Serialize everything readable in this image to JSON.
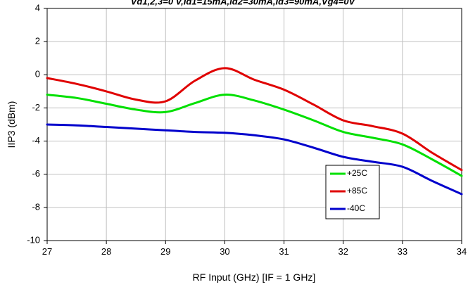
{
  "chart_data": {
    "type": "line",
    "title": "Vd1,2,3=0 V,Id1=15mA,Id2=30mA,Id3=90mA,Vg4=0V",
    "xlabel": "RF Input (GHz) [IF = 1 GHz]",
    "ylabel": "IIP3 (dBm)",
    "xlim": [
      27,
      34
    ],
    "ylim": [
      -10,
      4
    ],
    "x_ticks": [
      27,
      28,
      29,
      30,
      31,
      32,
      33,
      34
    ],
    "y_ticks": [
      -10,
      -8,
      -6,
      -4,
      -2,
      0,
      2,
      4
    ],
    "x_tick_labels": [
      "27",
      "28",
      "29",
      "30",
      "31",
      "32",
      "33",
      "34"
    ],
    "y_tick_labels": [
      "-10",
      "-8",
      "-6",
      "-4",
      "-2",
      "0",
      "2",
      "4"
    ],
    "grid": true,
    "legend_position": "lower-right",
    "x": [
      27,
      27.5,
      28,
      28.5,
      29,
      29.5,
      30,
      30.5,
      31,
      31.5,
      32,
      32.5,
      33,
      33.5,
      34
    ],
    "series": [
      {
        "name": "+25C",
        "color": "#00e000",
        "values": [
          -1.2,
          -1.4,
          -1.75,
          -2.1,
          -2.25,
          -1.7,
          -1.2,
          -1.55,
          -2.1,
          -2.75,
          -3.45,
          -3.8,
          -4.2,
          -5.1,
          -6.1
        ]
      },
      {
        "name": "+85C",
        "color": "#e00000",
        "values": [
          -0.2,
          -0.55,
          -1.0,
          -1.5,
          -1.6,
          -0.35,
          0.4,
          -0.3,
          -0.9,
          -1.8,
          -2.75,
          -3.1,
          -3.55,
          -4.7,
          -5.75
        ]
      },
      {
        "name": "-40C",
        "color": "#0000cc",
        "values": [
          -3.0,
          -3.05,
          -3.15,
          -3.25,
          -3.35,
          -3.45,
          -3.5,
          -3.65,
          -3.9,
          -4.4,
          -4.95,
          -5.25,
          -5.55,
          -6.4,
          -7.2
        ]
      }
    ]
  }
}
